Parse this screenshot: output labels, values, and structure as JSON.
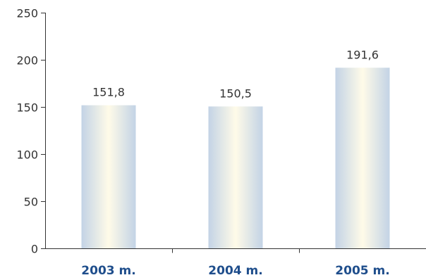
{
  "chart_data": {
    "type": "bar",
    "categories": [
      "2003 m.",
      "2004 m.",
      "2005 m."
    ],
    "values": [
      151.8,
      150.5,
      191.6
    ],
    "value_labels": [
      "151,8",
      "150,5",
      "191,6"
    ],
    "y_ticks": [
      0,
      50,
      100,
      150,
      200,
      250
    ],
    "y_tick_labels": [
      "0",
      "50",
      "100",
      "150",
      "200",
      "250"
    ],
    "ylim": [
      0,
      250
    ],
    "title": "",
    "xlabel": "",
    "ylabel": "",
    "grid": false,
    "legend": "none",
    "colors": {
      "bar_edge": "#c3d3e6",
      "bar_center": "#fffbe8",
      "category_text": "#1f4e8c",
      "axis": "#333333"
    }
  }
}
